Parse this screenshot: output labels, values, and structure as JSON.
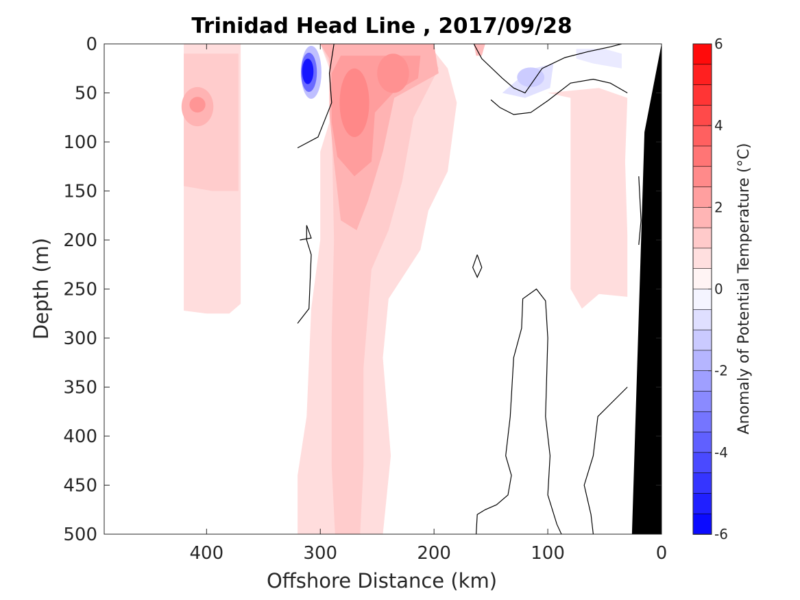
{
  "chart_data": {
    "type": "heatmap",
    "subtype": "filled-contour section",
    "title": "Trinidad Head Line , 2017/09/28",
    "xlabel": "Offshore Distance (km)",
    "ylabel": "Depth (m)",
    "x_reversed": true,
    "y_reversed": true,
    "xlim": [
      490,
      0
    ],
    "ylim": [
      500,
      0
    ],
    "xticks": [
      400,
      300,
      200,
      100,
      0
    ],
    "yticks": [
      0,
      50,
      100,
      150,
      200,
      250,
      300,
      350,
      400,
      450,
      500
    ],
    "colorbar": {
      "label": "Anomaly of Potential Temperature (°C)",
      "range": [
        -6,
        6
      ],
      "ticks": [
        6,
        4,
        2,
        0,
        -2,
        -4,
        -6
      ],
      "level_step": 0.5,
      "colormap": "blue-white-red",
      "negative_color": "#0000ff",
      "positive_color": "#ff0000",
      "zero_color": "#ffffff"
    },
    "zero_contour": "black line",
    "bathymetry_color": "#000000",
    "features": [
      {
        "label": "offshore warm column",
        "x_range": [
          420,
          370
        ],
        "depth_range": [
          0,
          275
        ],
        "anomaly": 1.0
      },
      {
        "label": "offshore warm core",
        "x": 410,
        "depth": 62,
        "anomaly": 2.5
      },
      {
        "label": "cold core",
        "x": 310,
        "depth": 28,
        "anomaly": -5.5
      },
      {
        "label": "warm column",
        "x_range": [
          320,
          200
        ],
        "depth_range": [
          0,
          500
        ],
        "anomaly": 1.0
      },
      {
        "label": "warm core",
        "x": 270,
        "depth": 55,
        "anomaly": 3.0
      },
      {
        "label": "cool patch",
        "x": 115,
        "depth": 35,
        "anomaly": -1.0
      },
      {
        "label": "nearshore warm band",
        "x_range": [
          100,
          30
        ],
        "depth_range": [
          40,
          260
        ],
        "anomaly": 1.0
      }
    ]
  }
}
